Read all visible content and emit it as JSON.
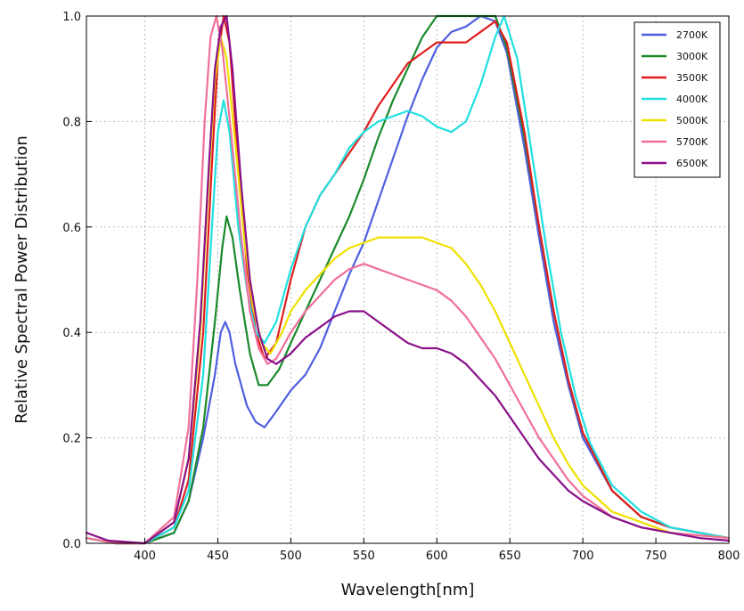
{
  "chart_data": {
    "type": "line",
    "xlabel": "Wavelength[nm]",
    "ylabel": "Relative Spectral Power Distribution",
    "xlim": [
      360,
      800
    ],
    "ylim": [
      0.0,
      1.0
    ],
    "x_ticks": [
      "400",
      "450",
      "500",
      "550",
      "600",
      "650",
      "700",
      "750",
      "800"
    ],
    "y_ticks": [
      "0.0",
      "0.2",
      "0.4",
      "0.6",
      "0.8",
      "1.0"
    ],
    "grid": true,
    "legend_position": "top-right",
    "series": [
      {
        "name": "2700K",
        "color": "#4f5fe0",
        "points": [
          [
            360,
            0.01
          ],
          [
            380,
            0.0
          ],
          [
            400,
            0.0
          ],
          [
            420,
            0.02
          ],
          [
            430,
            0.08
          ],
          [
            440,
            0.2
          ],
          [
            448,
            0.32
          ],
          [
            452,
            0.4
          ],
          [
            455,
            0.42
          ],
          [
            458,
            0.4
          ],
          [
            462,
            0.34
          ],
          [
            470,
            0.26
          ],
          [
            476,
            0.23
          ],
          [
            482,
            0.22
          ],
          [
            490,
            0.25
          ],
          [
            500,
            0.29
          ],
          [
            510,
            0.32
          ],
          [
            520,
            0.37
          ],
          [
            530,
            0.44
          ],
          [
            540,
            0.51
          ],
          [
            550,
            0.57
          ],
          [
            560,
            0.65
          ],
          [
            570,
            0.73
          ],
          [
            580,
            0.81
          ],
          [
            590,
            0.88
          ],
          [
            600,
            0.94
          ],
          [
            610,
            0.97
          ],
          [
            620,
            0.98
          ],
          [
            630,
            1.0
          ],
          [
            640,
            0.99
          ],
          [
            648,
            0.93
          ],
          [
            660,
            0.75
          ],
          [
            670,
            0.58
          ],
          [
            680,
            0.42
          ],
          [
            690,
            0.3
          ],
          [
            700,
            0.2
          ],
          [
            720,
            0.1
          ],
          [
            740,
            0.05
          ],
          [
            760,
            0.03
          ],
          [
            780,
            0.02
          ],
          [
            800,
            0.01
          ]
        ]
      },
      {
        "name": "3000K",
        "color": "#1a8a2a",
        "points": [
          [
            360,
            0.01
          ],
          [
            380,
            0.0
          ],
          [
            400,
            0.0
          ],
          [
            420,
            0.02
          ],
          [
            430,
            0.08
          ],
          [
            440,
            0.22
          ],
          [
            448,
            0.42
          ],
          [
            453,
            0.56
          ],
          [
            456,
            0.62
          ],
          [
            460,
            0.58
          ],
          [
            465,
            0.48
          ],
          [
            472,
            0.36
          ],
          [
            478,
            0.3
          ],
          [
            484,
            0.3
          ],
          [
            492,
            0.33
          ],
          [
            500,
            0.38
          ],
          [
            510,
            0.44
          ],
          [
            520,
            0.5
          ],
          [
            530,
            0.56
          ],
          [
            540,
            0.62
          ],
          [
            550,
            0.69
          ],
          [
            560,
            0.77
          ],
          [
            570,
            0.84
          ],
          [
            580,
            0.9
          ],
          [
            590,
            0.96
          ],
          [
            600,
            1.0
          ],
          [
            610,
            1.0
          ],
          [
            620,
            1.0
          ],
          [
            630,
            1.0
          ],
          [
            640,
            1.0
          ],
          [
            648,
            0.94
          ],
          [
            660,
            0.77
          ],
          [
            670,
            0.6
          ],
          [
            680,
            0.44
          ],
          [
            690,
            0.31
          ],
          [
            700,
            0.21
          ],
          [
            720,
            0.1
          ],
          [
            740,
            0.05
          ],
          [
            760,
            0.03
          ],
          [
            780,
            0.02
          ],
          [
            800,
            0.01
          ]
        ]
      },
      {
        "name": "3500K",
        "color": "#e01e1e",
        "points": [
          [
            360,
            0.01
          ],
          [
            380,
            0.0
          ],
          [
            400,
            0.0
          ],
          [
            420,
            0.03
          ],
          [
            430,
            0.12
          ],
          [
            440,
            0.4
          ],
          [
            446,
            0.72
          ],
          [
            450,
            0.92
          ],
          [
            454,
            1.0
          ],
          [
            458,
            0.95
          ],
          [
            464,
            0.72
          ],
          [
            470,
            0.52
          ],
          [
            476,
            0.4
          ],
          [
            482,
            0.35
          ],
          [
            490,
            0.38
          ],
          [
            500,
            0.5
          ],
          [
            510,
            0.6
          ],
          [
            520,
            0.66
          ],
          [
            530,
            0.7
          ],
          [
            540,
            0.74
          ],
          [
            550,
            0.78
          ],
          [
            560,
            0.83
          ],
          [
            570,
            0.87
          ],
          [
            580,
            0.91
          ],
          [
            590,
            0.93
          ],
          [
            600,
            0.95
          ],
          [
            610,
            0.95
          ],
          [
            620,
            0.95
          ],
          [
            630,
            0.97
          ],
          [
            640,
            0.99
          ],
          [
            648,
            0.95
          ],
          [
            660,
            0.78
          ],
          [
            670,
            0.6
          ],
          [
            680,
            0.44
          ],
          [
            690,
            0.31
          ],
          [
            700,
            0.21
          ],
          [
            720,
            0.1
          ],
          [
            740,
            0.05
          ],
          [
            760,
            0.03
          ],
          [
            780,
            0.02
          ],
          [
            800,
            0.01
          ]
        ]
      },
      {
        "name": "4000K",
        "color": "#1fe0e0",
        "points": [
          [
            360,
            0.01
          ],
          [
            380,
            0.0
          ],
          [
            400,
            0.0
          ],
          [
            420,
            0.03
          ],
          [
            430,
            0.1
          ],
          [
            440,
            0.32
          ],
          [
            446,
            0.6
          ],
          [
            450,
            0.78
          ],
          [
            454,
            0.84
          ],
          [
            458,
            0.78
          ],
          [
            464,
            0.6
          ],
          [
            470,
            0.48
          ],
          [
            476,
            0.4
          ],
          [
            482,
            0.38
          ],
          [
            490,
            0.42
          ],
          [
            500,
            0.52
          ],
          [
            510,
            0.6
          ],
          [
            520,
            0.66
          ],
          [
            530,
            0.7
          ],
          [
            540,
            0.75
          ],
          [
            550,
            0.78
          ],
          [
            560,
            0.8
          ],
          [
            570,
            0.81
          ],
          [
            580,
            0.82
          ],
          [
            590,
            0.81
          ],
          [
            600,
            0.79
          ],
          [
            610,
            0.78
          ],
          [
            620,
            0.8
          ],
          [
            630,
            0.87
          ],
          [
            640,
            0.96
          ],
          [
            646,
            1.0
          ],
          [
            655,
            0.92
          ],
          [
            665,
            0.74
          ],
          [
            675,
            0.56
          ],
          [
            685,
            0.4
          ],
          [
            695,
            0.28
          ],
          [
            705,
            0.19
          ],
          [
            720,
            0.11
          ],
          [
            740,
            0.06
          ],
          [
            760,
            0.03
          ],
          [
            780,
            0.02
          ],
          [
            800,
            0.01
          ]
        ]
      },
      {
        "name": "5000K",
        "color": "#f0e000",
        "points": [
          [
            360,
            0.01
          ],
          [
            380,
            0.0
          ],
          [
            400,
            0.0
          ],
          [
            420,
            0.04
          ],
          [
            430,
            0.16
          ],
          [
            438,
            0.4
          ],
          [
            444,
            0.7
          ],
          [
            448,
            0.88
          ],
          [
            452,
            0.96
          ],
          [
            456,
            0.92
          ],
          [
            462,
            0.76
          ],
          [
            468,
            0.58
          ],
          [
            474,
            0.45
          ],
          [
            480,
            0.38
          ],
          [
            486,
            0.36
          ],
          [
            494,
            0.4
          ],
          [
            500,
            0.44
          ],
          [
            510,
            0.48
          ],
          [
            520,
            0.51
          ],
          [
            530,
            0.54
          ],
          [
            540,
            0.56
          ],
          [
            550,
            0.57
          ],
          [
            560,
            0.58
          ],
          [
            570,
            0.58
          ],
          [
            580,
            0.58
          ],
          [
            590,
            0.58
          ],
          [
            600,
            0.57
          ],
          [
            610,
            0.56
          ],
          [
            620,
            0.53
          ],
          [
            630,
            0.49
          ],
          [
            640,
            0.44
          ],
          [
            650,
            0.38
          ],
          [
            660,
            0.32
          ],
          [
            670,
            0.26
          ],
          [
            680,
            0.2
          ],
          [
            690,
            0.15
          ],
          [
            700,
            0.11
          ],
          [
            720,
            0.06
          ],
          [
            740,
            0.04
          ],
          [
            760,
            0.02
          ],
          [
            780,
            0.015
          ],
          [
            800,
            0.01
          ]
        ]
      },
      {
        "name": "5700K",
        "color": "#f0709a",
        "points": [
          [
            360,
            0.01
          ],
          [
            380,
            0.0
          ],
          [
            400,
            0.0
          ],
          [
            420,
            0.05
          ],
          [
            430,
            0.22
          ],
          [
            436,
            0.5
          ],
          [
            441,
            0.8
          ],
          [
            445,
            0.96
          ],
          [
            449,
            1.0
          ],
          [
            453,
            0.94
          ],
          [
            459,
            0.78
          ],
          [
            466,
            0.58
          ],
          [
            472,
            0.44
          ],
          [
            478,
            0.37
          ],
          [
            484,
            0.34
          ],
          [
            490,
            0.35
          ],
          [
            500,
            0.4
          ],
          [
            510,
            0.44
          ],
          [
            520,
            0.47
          ],
          [
            530,
            0.5
          ],
          [
            540,
            0.52
          ],
          [
            550,
            0.53
          ],
          [
            560,
            0.52
          ],
          [
            570,
            0.51
          ],
          [
            580,
            0.5
          ],
          [
            590,
            0.49
          ],
          [
            600,
            0.48
          ],
          [
            610,
            0.46
          ],
          [
            620,
            0.43
          ],
          [
            630,
            0.39
          ],
          [
            640,
            0.35
          ],
          [
            650,
            0.3
          ],
          [
            660,
            0.25
          ],
          [
            670,
            0.2
          ],
          [
            680,
            0.16
          ],
          [
            690,
            0.12
          ],
          [
            700,
            0.09
          ],
          [
            720,
            0.05
          ],
          [
            740,
            0.03
          ],
          [
            760,
            0.02
          ],
          [
            780,
            0.015
          ],
          [
            800,
            0.01
          ]
        ]
      },
      {
        "name": "6500K",
        "color": "#8a108a",
        "points": [
          [
            360,
            0.02
          ],
          [
            375,
            0.005
          ],
          [
            400,
            0.0
          ],
          [
            420,
            0.04
          ],
          [
            430,
            0.16
          ],
          [
            438,
            0.42
          ],
          [
            444,
            0.72
          ],
          [
            448,
            0.9
          ],
          [
            452,
            0.98
          ],
          [
            456,
            1.0
          ],
          [
            460,
            0.9
          ],
          [
            466,
            0.68
          ],
          [
            472,
            0.5
          ],
          [
            478,
            0.4
          ],
          [
            484,
            0.35
          ],
          [
            490,
            0.34
          ],
          [
            500,
            0.36
          ],
          [
            510,
            0.39
          ],
          [
            520,
            0.41
          ],
          [
            530,
            0.43
          ],
          [
            540,
            0.44
          ],
          [
            550,
            0.44
          ],
          [
            560,
            0.42
          ],
          [
            570,
            0.4
          ],
          [
            580,
            0.38
          ],
          [
            590,
            0.37
          ],
          [
            600,
            0.37
          ],
          [
            610,
            0.36
          ],
          [
            620,
            0.34
          ],
          [
            630,
            0.31
          ],
          [
            640,
            0.28
          ],
          [
            650,
            0.24
          ],
          [
            660,
            0.2
          ],
          [
            670,
            0.16
          ],
          [
            680,
            0.13
          ],
          [
            690,
            0.1
          ],
          [
            700,
            0.08
          ],
          [
            720,
            0.05
          ],
          [
            740,
            0.03
          ],
          [
            760,
            0.02
          ],
          [
            780,
            0.01
          ],
          [
            800,
            0.005
          ]
        ]
      }
    ]
  }
}
